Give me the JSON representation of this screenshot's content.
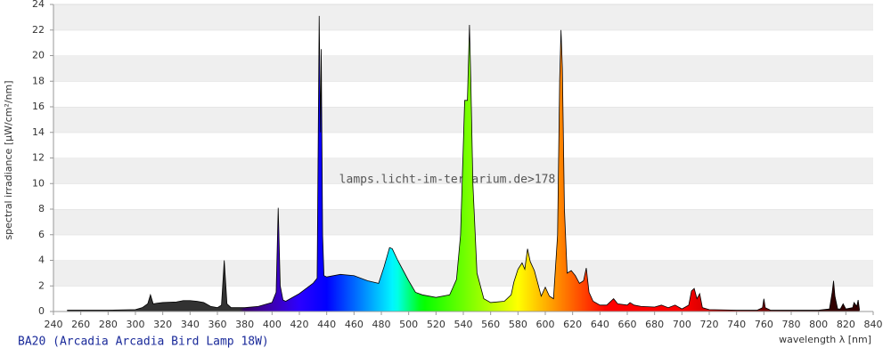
{
  "chart_data": {
    "type": "area",
    "title": "BA20 (Arcadia Arcadia Bird Lamp 18W)",
    "watermark": "lamps.licht-im-terrarium.de>178",
    "x_label": "wavelength λ [nm]",
    "y_label": "spectral irradiance [µW/cm²/nm]",
    "xlim": [
      240,
      840
    ],
    "ylim": [
      0,
      24
    ],
    "xticks": [
      240,
      260,
      280,
      300,
      320,
      340,
      360,
      380,
      400,
      420,
      440,
      460,
      480,
      500,
      520,
      540,
      560,
      580,
      600,
      620,
      640,
      660,
      680,
      700,
      720,
      740,
      760,
      780,
      800,
      820,
      840
    ],
    "yticks": [
      0,
      2,
      4,
      6,
      8,
      10,
      12,
      14,
      16,
      18,
      20,
      22,
      24
    ],
    "grid": true,
    "x": [
      250,
      260,
      280,
      300,
      305,
      309,
      311,
      313,
      316,
      320,
      330,
      335,
      340,
      345,
      350,
      355,
      360,
      363,
      365,
      367,
      370,
      380,
      390,
      400,
      403,
      404.5,
      406,
      408,
      410,
      420,
      430,
      433,
      434.5,
      435.5,
      436,
      437,
      438,
      440,
      450,
      460,
      470,
      478,
      482,
      486,
      488,
      492,
      496,
      500,
      505,
      510,
      520,
      530,
      535,
      538,
      541,
      543,
      544.5,
      545.5,
      547,
      550,
      555,
      560,
      570,
      575,
      577,
      580,
      583,
      585,
      587,
      589,
      592,
      595,
      597,
      600,
      603,
      606,
      609,
      610.5,
      611.5,
      612.5,
      614,
      616,
      619,
      622,
      625,
      628,
      630,
      632,
      635,
      640,
      645,
      650,
      653,
      660,
      662,
      665,
      670,
      680,
      685,
      690,
      695,
      700,
      705,
      707,
      709,
      711,
      713,
      715,
      720,
      740,
      755,
      759,
      760,
      761,
      765,
      790,
      800,
      808,
      810,
      811,
      812,
      814,
      816,
      818,
      820,
      825,
      826,
      828,
      829,
      830
    ],
    "values": [
      0.1,
      0.1,
      0.1,
      0.15,
      0.3,
      0.6,
      1.3,
      0.6,
      0.65,
      0.7,
      0.75,
      0.85,
      0.85,
      0.8,
      0.7,
      0.4,
      0.3,
      0.5,
      4.0,
      0.6,
      0.3,
      0.3,
      0.4,
      0.7,
      1.5,
      8.1,
      2.0,
      0.9,
      0.8,
      1.4,
      2.2,
      2.6,
      23.1,
      14,
      20.5,
      6,
      2.8,
      2.7,
      2.9,
      2.8,
      2.4,
      2.2,
      3.5,
      5.0,
      4.9,
      4.0,
      3.2,
      2.4,
      1.5,
      1.3,
      1.1,
      1.3,
      2.5,
      6,
      16.5,
      16.5,
      22.4,
      18,
      10,
      3,
      1.0,
      0.7,
      0.8,
      1.3,
      2.3,
      3.3,
      3.8,
      3.3,
      4.9,
      3.9,
      3.2,
      2.0,
      1.2,
      1.9,
      1.2,
      1.0,
      6,
      18,
      22,
      19,
      8,
      3,
      3.2,
      2.8,
      2.2,
      2.4,
      3.4,
      1.5,
      0.8,
      0.5,
      0.5,
      1.0,
      0.6,
      0.5,
      0.7,
      0.5,
      0.4,
      0.35,
      0.5,
      0.3,
      0.5,
      0.2,
      0.5,
      1.6,
      1.8,
      1.0,
      1.4,
      0.3,
      0.15,
      0.1,
      0.1,
      0.3,
      1.0,
      0.3,
      0.1,
      0.1,
      0.1,
      0.2,
      1.5,
      2.4,
      1.2,
      0.2,
      0.2,
      0.6,
      0.2,
      0.3,
      0.7,
      0.4,
      0.9,
      0.1
    ]
  }
}
